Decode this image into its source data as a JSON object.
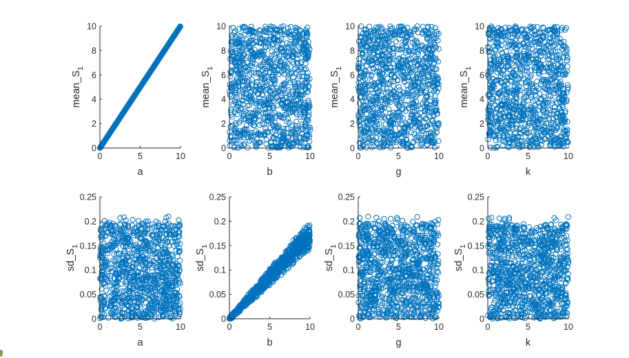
{
  "figure": {
    "marker_color": "#0072bd",
    "axis_color": "#262626",
    "background": "#ffffff"
  },
  "chart_data": [
    {
      "type": "scatter",
      "xlabel": "a",
      "ylabel": "mean_S",
      "ylabel_subscript": "1",
      "xlim": [
        0,
        10
      ],
      "ylim": [
        0,
        10
      ],
      "xticks": [
        "0",
        "5",
        "10"
      ],
      "yticks": [
        "0",
        "2",
        "4",
        "6",
        "8",
        "10"
      ],
      "marker": "open-circle",
      "pattern": "y ≈ x (points lie on the diagonal)",
      "sample_points": [
        [
          0,
          0
        ],
        [
          2.5,
          2.5
        ],
        [
          5,
          5
        ],
        [
          7.5,
          7.5
        ],
        [
          10,
          10
        ]
      ]
    },
    {
      "type": "scatter",
      "xlabel": "b",
      "ylabel": "mean_S",
      "ylabel_subscript": "1",
      "xlim": [
        0,
        10
      ],
      "ylim": [
        0,
        10
      ],
      "xticks": [
        "0",
        "5",
        "10"
      ],
      "yticks": [
        "0",
        "2",
        "4",
        "6",
        "8",
        "10"
      ],
      "marker": "open-circle",
      "pattern": "uniform scatter over 0–10 × 0–10"
    },
    {
      "type": "scatter",
      "xlabel": "g",
      "ylabel": "mean_S",
      "ylabel_subscript": "1",
      "xlim": [
        0,
        10
      ],
      "ylim": [
        0,
        10
      ],
      "xticks": [
        "0",
        "5",
        "10"
      ],
      "yticks": [
        "0",
        "2",
        "4",
        "6",
        "8",
        "10"
      ],
      "marker": "open-circle",
      "pattern": "uniform scatter over 0–10 × 0–10"
    },
    {
      "type": "scatter",
      "xlabel": "k",
      "ylabel": "mean_S",
      "ylabel_subscript": "1",
      "xlim": [
        0,
        10
      ],
      "ylim": [
        0,
        10
      ],
      "xticks": [
        "0",
        "5",
        "10"
      ],
      "yticks": [
        "0",
        "2",
        "4",
        "6",
        "8",
        "10"
      ],
      "marker": "open-circle",
      "pattern": "uniform scatter over 0–10 × 0–10"
    },
    {
      "type": "scatter",
      "xlabel": "a",
      "ylabel": "sd_S",
      "ylabel_subscript": "1",
      "xlim": [
        0,
        10
      ],
      "ylim": [
        0,
        0.25
      ],
      "xticks": [
        "0",
        "5",
        "10"
      ],
      "yticks": [
        "0",
        "0.05",
        "0.1",
        "0.15",
        "0.2",
        "0.25"
      ],
      "marker": "open-circle",
      "pattern": "uniform scatter, x 0–10, y 0–0.2 (few up to 0.21)"
    },
    {
      "type": "scatter",
      "xlabel": "b",
      "ylabel": "sd_S",
      "ylabel_subscript": "1",
      "xlim": [
        0,
        10
      ],
      "ylim": [
        0,
        0.25
      ],
      "xticks": [
        "0",
        "5",
        "10"
      ],
      "yticks": [
        "0",
        "0.05",
        "0.1",
        "0.15",
        "0.2",
        "0.25"
      ],
      "marker": "open-circle",
      "pattern": "linear wedge: y ≈ 0.017·x, spread widening with x",
      "sample_points": [
        [
          0,
          0
        ],
        [
          2,
          0.034
        ],
        [
          4,
          0.068
        ],
        [
          6,
          0.1
        ],
        [
          8,
          0.136
        ],
        [
          10,
          0.17
        ]
      ]
    },
    {
      "type": "scatter",
      "xlabel": "g",
      "ylabel": "sd_S",
      "ylabel_subscript": "1",
      "xlim": [
        0,
        10
      ],
      "ylim": [
        0,
        0.25
      ],
      "xticks": [
        "0",
        "5",
        "10"
      ],
      "yticks": [
        "0",
        "0.05",
        "0.1",
        "0.15",
        "0.2",
        "0.25"
      ],
      "marker": "open-circle",
      "pattern": "uniform scatter, x 0–10, y 0–0.2 (few up to 0.21)"
    },
    {
      "type": "scatter",
      "xlabel": "k",
      "ylabel": "sd_S",
      "ylabel_subscript": "1",
      "xlim": [
        0,
        10
      ],
      "ylim": [
        0,
        0.25
      ],
      "xticks": [
        "0",
        "5",
        "10"
      ],
      "yticks": [
        "0",
        "0.05",
        "0.1",
        "0.15",
        "0.2",
        "0.25"
      ],
      "marker": "open-circle",
      "pattern": "uniform scatter, x 0–10, y 0–0.2 (few up to 0.21)"
    }
  ]
}
